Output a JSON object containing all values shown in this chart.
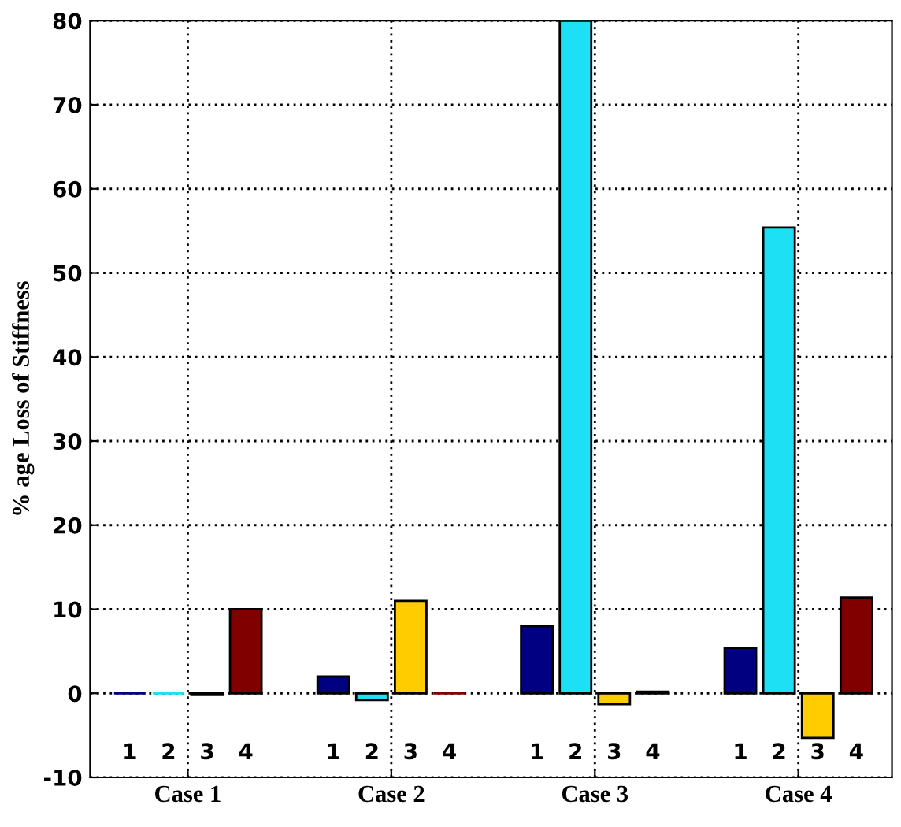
{
  "chart_data": {
    "type": "bar",
    "ylabel": "% age Loss of Stiffness",
    "categories": [
      "Case 1",
      "Case 2",
      "Case 3",
      "Case 4"
    ],
    "series": [
      {
        "name": "1",
        "color": "#000080",
        "values": [
          0,
          2,
          8,
          5.4
        ]
      },
      {
        "name": "2",
        "color": "#1ee0f5",
        "values": [
          0,
          -0.8,
          80,
          55.4
        ]
      },
      {
        "name": "3",
        "color": "#ffcc00",
        "values": [
          -0.2,
          11,
          -1.3,
          -5.3
        ]
      },
      {
        "name": "4",
        "color": "#800000",
        "values": [
          10,
          0,
          0.2,
          11.4
        ]
      }
    ],
    "ylim": [
      -10,
      80
    ],
    "yticks": [
      -10,
      0,
      10,
      20,
      30,
      40,
      50,
      60,
      70,
      80
    ],
    "grid": true,
    "legend": false
  }
}
